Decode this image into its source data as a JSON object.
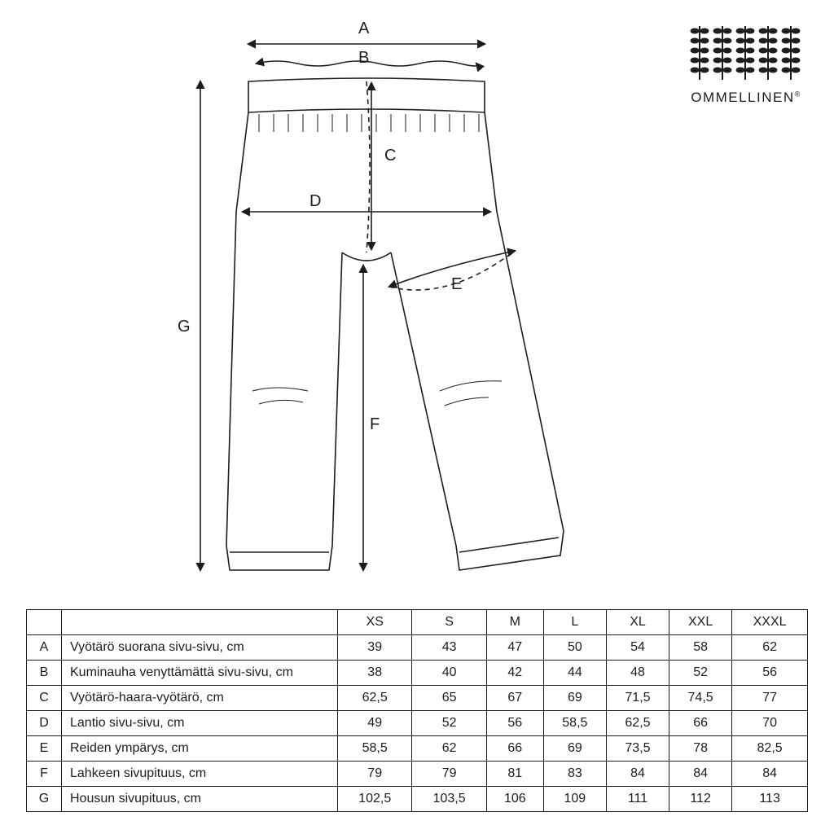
{
  "brand": "OMMELLINEN",
  "diagram": {
    "stroke": "#1d1d1f",
    "stroke_width": 1.6,
    "labels": {
      "A": "A",
      "B": "B",
      "C": "C",
      "D": "D",
      "E": "E",
      "F": "F",
      "G": "G"
    }
  },
  "table": {
    "sizes": [
      "XS",
      "S",
      "M",
      "L",
      "XL",
      "XXL",
      "XXXL"
    ],
    "rows": [
      {
        "key": "A",
        "label": "Vyötärö suorana sivu-sivu, cm",
        "values": [
          "39",
          "43",
          "47",
          "50",
          "54",
          "58",
          "62"
        ]
      },
      {
        "key": "B",
        "label": "Kuminauha venyttämättä sivu-sivu, cm",
        "values": [
          "38",
          "40",
          "42",
          "44",
          "48",
          "52",
          "56"
        ]
      },
      {
        "key": "C",
        "label": "Vyötärö-haara-vyötärö, cm",
        "values": [
          "62,5",
          "65",
          "67",
          "69",
          "71,5",
          "74,5",
          "77"
        ]
      },
      {
        "key": "D",
        "label": "Lantio sivu-sivu, cm",
        "values": [
          "49",
          "52",
          "56",
          "58,5",
          "62,5",
          "66",
          "70"
        ]
      },
      {
        "key": "E",
        "label": "Reiden ympärys, cm",
        "values": [
          "58,5",
          "62",
          "66",
          "69",
          "73,5",
          "78",
          "82,5"
        ]
      },
      {
        "key": "F",
        "label": "Lahkeen sivupituus, cm",
        "values": [
          "79",
          "79",
          "81",
          "83",
          "84",
          "84",
          "84"
        ]
      },
      {
        "key": "G",
        "label": "Housun sivupituus, cm",
        "values": [
          "102,5",
          "103,5",
          "106",
          "109",
          "111",
          "112",
          "113"
        ]
      }
    ],
    "cell_fontsize": 16,
    "border_color": "#1d1d1f"
  },
  "logo": {
    "leaf_color": "#1d1d1f",
    "columns": 5,
    "pairs": 5
  }
}
